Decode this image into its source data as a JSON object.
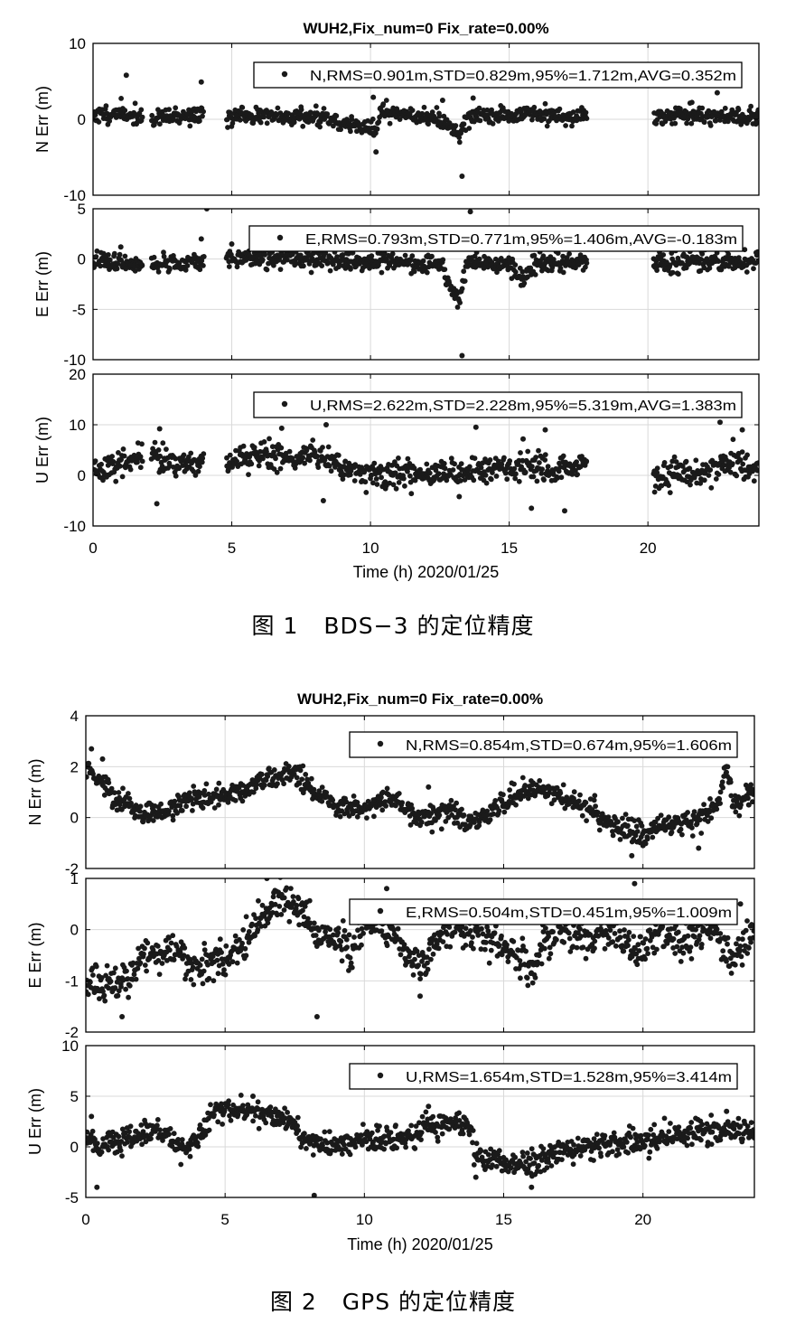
{
  "figures": [
    {
      "title": "WUH2,Fix_num=0 Fix_rate=0.00%",
      "xlabel": "Time (h)  2020/01/25",
      "caption_num": "图 1",
      "caption_text": "BDS−3 的定位精度"
    },
    {
      "title": "WUH2,Fix_num=0 Fix_rate=0.00%",
      "xlabel": "Time (h)  2020/01/25",
      "caption_num": "图 2",
      "caption_text": "GPS 的定位精度"
    }
  ],
  "colors": {
    "points": "#1a1a1a",
    "grid": "#d9d9d9",
    "axes": "#000000"
  },
  "chart_data": [
    {
      "type": "scatter",
      "title": "WUH2,Fix_num=0 Fix_rate=0.00%",
      "xlabel": "Time (h)  2020/01/25",
      "xlim": [
        0,
        24
      ],
      "xticks": [
        0,
        5,
        10,
        15,
        20
      ],
      "grid": true,
      "legend_position": "top-right",
      "panels": [
        {
          "ylabel": "N Err (m)",
          "ylim": [
            -10,
            10
          ],
          "yticks": [
            -10,
            0,
            10
          ],
          "legend": "N,RMS=0.901m,STD=0.829m,95%=1.712m,AVG=0.352m",
          "gaps": [
            [
              1.8,
              2.1
            ],
            [
              4.0,
              4.8
            ],
            [
              17.8,
              20.2
            ]
          ],
          "profile": [
            [
              0,
              0.6
            ],
            [
              1,
              0.8
            ],
            [
              1.7,
              0.3
            ],
            [
              2.1,
              0.0
            ],
            [
              4,
              0.7
            ],
            [
              4.8,
              0.3
            ],
            [
              6,
              0.5
            ],
            [
              8,
              0.4
            ],
            [
              9.5,
              -0.8
            ],
            [
              10.2,
              -1.5
            ],
            [
              10.4,
              1.2
            ],
            [
              11,
              1.0
            ],
            [
              12.5,
              0.0
            ],
            [
              13.2,
              -2.2
            ],
            [
              13.5,
              0.4
            ],
            [
              16,
              0.8
            ],
            [
              17.8,
              0.2
            ],
            [
              20.2,
              0.5
            ],
            [
              24,
              0.3
            ]
          ],
          "noise": 0.55,
          "outliers": [
            [
              1.2,
              5.8
            ],
            [
              3.9,
              4.9
            ],
            [
              13.3,
              -7.5
            ],
            [
              22.5,
              3.5
            ],
            [
              10.2,
              -4.3
            ],
            [
              13.7,
              2.8
            ],
            [
              12.6,
              2.5
            ],
            [
              10.1,
              2.9
            ]
          ]
        },
        {
          "ylabel": "E Err (m)",
          "ylim": [
            -10,
            5
          ],
          "yticks": [
            -10,
            -5,
            0,
            5
          ],
          "legend": "E,RMS=0.793m,STD=0.771m,95%=1.406m,AVG=-0.183m",
          "gaps": [
            [
              1.8,
              2.1
            ],
            [
              4.0,
              4.8
            ],
            [
              17.8,
              20.2
            ]
          ],
          "profile": [
            [
              0,
              -0.2
            ],
            [
              1.7,
              -0.6
            ],
            [
              2.1,
              -0.5
            ],
            [
              4,
              -0.4
            ],
            [
              4.8,
              0.2
            ],
            [
              8,
              0.0
            ],
            [
              10,
              -0.2
            ],
            [
              12.5,
              -0.5
            ],
            [
              13.2,
              -4.5
            ],
            [
              13.5,
              -0.3
            ],
            [
              15,
              -0.6
            ],
            [
              15.5,
              -2.0
            ],
            [
              16,
              -0.3
            ],
            [
              17.8,
              -0.3
            ],
            [
              20.2,
              -0.5
            ],
            [
              24,
              -0.1
            ]
          ],
          "noise": 0.45,
          "outliers": [
            [
              4.1,
              5.0
            ],
            [
              13.3,
              -9.6
            ],
            [
              13.6,
              4.7
            ],
            [
              1.0,
              1.2
            ],
            [
              3.9,
              2.0
            ],
            [
              5.0,
              1.5
            ]
          ]
        },
        {
          "ylabel": "U Err (m)",
          "ylim": [
            -10,
            20
          ],
          "yticks": [
            -10,
            0,
            10,
            20
          ],
          "legend": "U,RMS=2.622m,STD=2.228m,95%=5.319m,AVG=1.383m",
          "gaps": [
            [
              1.8,
              2.1
            ],
            [
              4.0,
              4.8
            ],
            [
              17.8,
              20.2
            ]
          ],
          "profile": [
            [
              0,
              1.0
            ],
            [
              1,
              2.0
            ],
            [
              1.7,
              4.0
            ],
            [
              2.1,
              4.0
            ],
            [
              3,
              2.0
            ],
            [
              4,
              3.0
            ],
            [
              4.8,
              2.0
            ],
            [
              6,
              4.5
            ],
            [
              7,
              3.0
            ],
            [
              8,
              4.5
            ],
            [
              9,
              1.5
            ],
            [
              10.5,
              -0.5
            ],
            [
              11,
              0.5
            ],
            [
              13.5,
              0.5
            ],
            [
              14.5,
              1.0
            ],
            [
              16,
              1.5
            ],
            [
              16.5,
              0.5
            ],
            [
              17.8,
              2.0
            ],
            [
              20.2,
              -0.5
            ],
            [
              22,
              0.5
            ],
            [
              23,
              3.0
            ],
            [
              24,
              1.0
            ]
          ],
          "noise": 1.3,
          "outliers": [
            [
              2.3,
              -5.6
            ],
            [
              2.4,
              9.2
            ],
            [
              6.8,
              9.3
            ],
            [
              8.4,
              10.0
            ],
            [
              13.8,
              9.5
            ],
            [
              22.6,
              10.5
            ],
            [
              8.3,
              -5.0
            ],
            [
              13.2,
              -4.2
            ],
            [
              15.8,
              -6.5
            ],
            [
              17.0,
              -7.0
            ],
            [
              23.4,
              9.0
            ],
            [
              16.3,
              9.0
            ],
            [
              15.5,
              7.2
            ]
          ]
        }
      ]
    },
    {
      "type": "scatter",
      "title": "WUH2,Fix_num=0 Fix_rate=0.00%",
      "xlabel": "Time (h)  2020/01/25",
      "xlim": [
        0,
        24
      ],
      "xticks": [
        0,
        5,
        10,
        15,
        20
      ],
      "grid": true,
      "legend_position": "top-right",
      "panels": [
        {
          "ylabel": "N Err (m)",
          "ylim": [
            -2,
            4
          ],
          "yticks": [
            -2,
            0,
            2,
            4
          ],
          "legend": "N,RMS=0.854m,STD=0.674m,95%=1.606m",
          "gaps": [],
          "profile": [
            [
              0,
              2.0
            ],
            [
              0.5,
              1.5
            ],
            [
              1,
              0.8
            ],
            [
              2,
              0.1
            ],
            [
              3,
              0.3
            ],
            [
              4,
              0.8
            ],
            [
              5,
              0.8
            ],
            [
              6,
              1.3
            ],
            [
              7.5,
              1.8
            ],
            [
              8.3,
              1.0
            ],
            [
              9,
              0.5
            ],
            [
              10,
              0.3
            ],
            [
              11,
              0.8
            ],
            [
              12,
              0.0
            ],
            [
              13,
              0.2
            ],
            [
              14,
              -0.2
            ],
            [
              15,
              0.6
            ],
            [
              16,
              1.2
            ],
            [
              17,
              0.8
            ],
            [
              18,
              0.4
            ],
            [
              19,
              -0.3
            ],
            [
              20,
              -0.6
            ],
            [
              21,
              -0.3
            ],
            [
              22,
              -0.1
            ],
            [
              22.7,
              0.5
            ],
            [
              23,
              2.0
            ],
            [
              23.2,
              0.5
            ],
            [
              24,
              1.0
            ]
          ],
          "noise": 0.22,
          "outliers": [
            [
              0.2,
              2.7
            ],
            [
              0.6,
              2.3
            ],
            [
              19.6,
              -1.5
            ],
            [
              20.0,
              -1.1
            ],
            [
              22.0,
              -1.2
            ],
            [
              12.3,
              1.2
            ],
            [
              23.0,
              2.0
            ],
            [
              23.8,
              0.5
            ]
          ]
        },
        {
          "ylabel": "E Err (m)",
          "ylim": [
            -2,
            1
          ],
          "yticks": [
            -2,
            -1,
            0,
            1
          ],
          "legend": "E,RMS=0.504m,STD=0.451m,95%=1.009m",
          "gaps": [],
          "profile": [
            [
              0,
              -1.0
            ],
            [
              0.5,
              -1.1
            ],
            [
              1.2,
              -1.2
            ],
            [
              2,
              -0.6
            ],
            [
              3,
              -0.3
            ],
            [
              4,
              -0.8
            ],
            [
              5,
              -0.6
            ],
            [
              6,
              0.0
            ],
            [
              6.8,
              0.6
            ],
            [
              7.5,
              0.4
            ],
            [
              8.2,
              0.0
            ],
            [
              9,
              -0.2
            ],
            [
              9.5,
              -0.5
            ],
            [
              10,
              0.1
            ],
            [
              11,
              0.0
            ],
            [
              12,
              -0.8
            ],
            [
              12.5,
              -0.3
            ],
            [
              13,
              0.1
            ],
            [
              14,
              0.0
            ],
            [
              15,
              -0.3
            ],
            [
              16,
              -0.8
            ],
            [
              16.5,
              -0.2
            ],
            [
              17,
              0.0
            ],
            [
              18,
              -0.1
            ],
            [
              19,
              0.0
            ],
            [
              19.7,
              -0.5
            ],
            [
              20.5,
              -0.1
            ],
            [
              21.5,
              -0.2
            ],
            [
              22.5,
              0.1
            ],
            [
              23.2,
              -0.6
            ],
            [
              24,
              0.0
            ]
          ],
          "noise": 0.18,
          "outliers": [
            [
              1.3,
              -1.7
            ],
            [
              6.5,
              1.0
            ],
            [
              8.3,
              -1.7
            ],
            [
              10.8,
              0.8
            ],
            [
              19.7,
              0.9
            ],
            [
              23.5,
              0.5
            ],
            [
              12.0,
              -1.3
            ]
          ]
        },
        {
          "ylabel": "U Err (m)",
          "ylim": [
            -5,
            10
          ],
          "yticks": [
            -5,
            0,
            5,
            10
          ],
          "legend": "U,RMS=1.654m,STD=1.528m,95%=3.414m",
          "gaps": [],
          "profile": [
            [
              0,
              1.0
            ],
            [
              0.5,
              0.0
            ],
            [
              1,
              0.3
            ],
            [
              2,
              1.0
            ],
            [
              2.5,
              2.0
            ],
            [
              3,
              1.0
            ],
            [
              3.5,
              -0.5
            ],
            [
              4,
              0.5
            ],
            [
              4.5,
              3.5
            ],
            [
              5.5,
              3.5
            ],
            [
              6.5,
              3.5
            ],
            [
              7.5,
              2.0
            ],
            [
              8,
              0.5
            ],
            [
              9,
              0.0
            ],
            [
              10,
              1.0
            ],
            [
              11,
              0.5
            ],
            [
              12,
              1.5
            ],
            [
              13,
              2.5
            ],
            [
              13.8,
              2.0
            ],
            [
              14,
              -1.0
            ],
            [
              15,
              -1.5
            ],
            [
              16,
              -1.5
            ],
            [
              17,
              -0.5
            ],
            [
              18,
              0.0
            ],
            [
              20,
              0.5
            ],
            [
              21,
              1.0
            ],
            [
              22,
              1.5
            ],
            [
              23,
              1.5
            ],
            [
              24,
              1.2
            ]
          ],
          "noise": 0.6,
          "outliers": [
            [
              0.4,
              -4.0
            ],
            [
              8.2,
              -4.8
            ],
            [
              12.3,
              4.0
            ],
            [
              14.0,
              -3.0
            ],
            [
              16.0,
              -4.0
            ],
            [
              23.0,
              3.5
            ],
            [
              0.2,
              3.0
            ],
            [
              6.0,
              5.0
            ]
          ]
        }
      ]
    }
  ]
}
